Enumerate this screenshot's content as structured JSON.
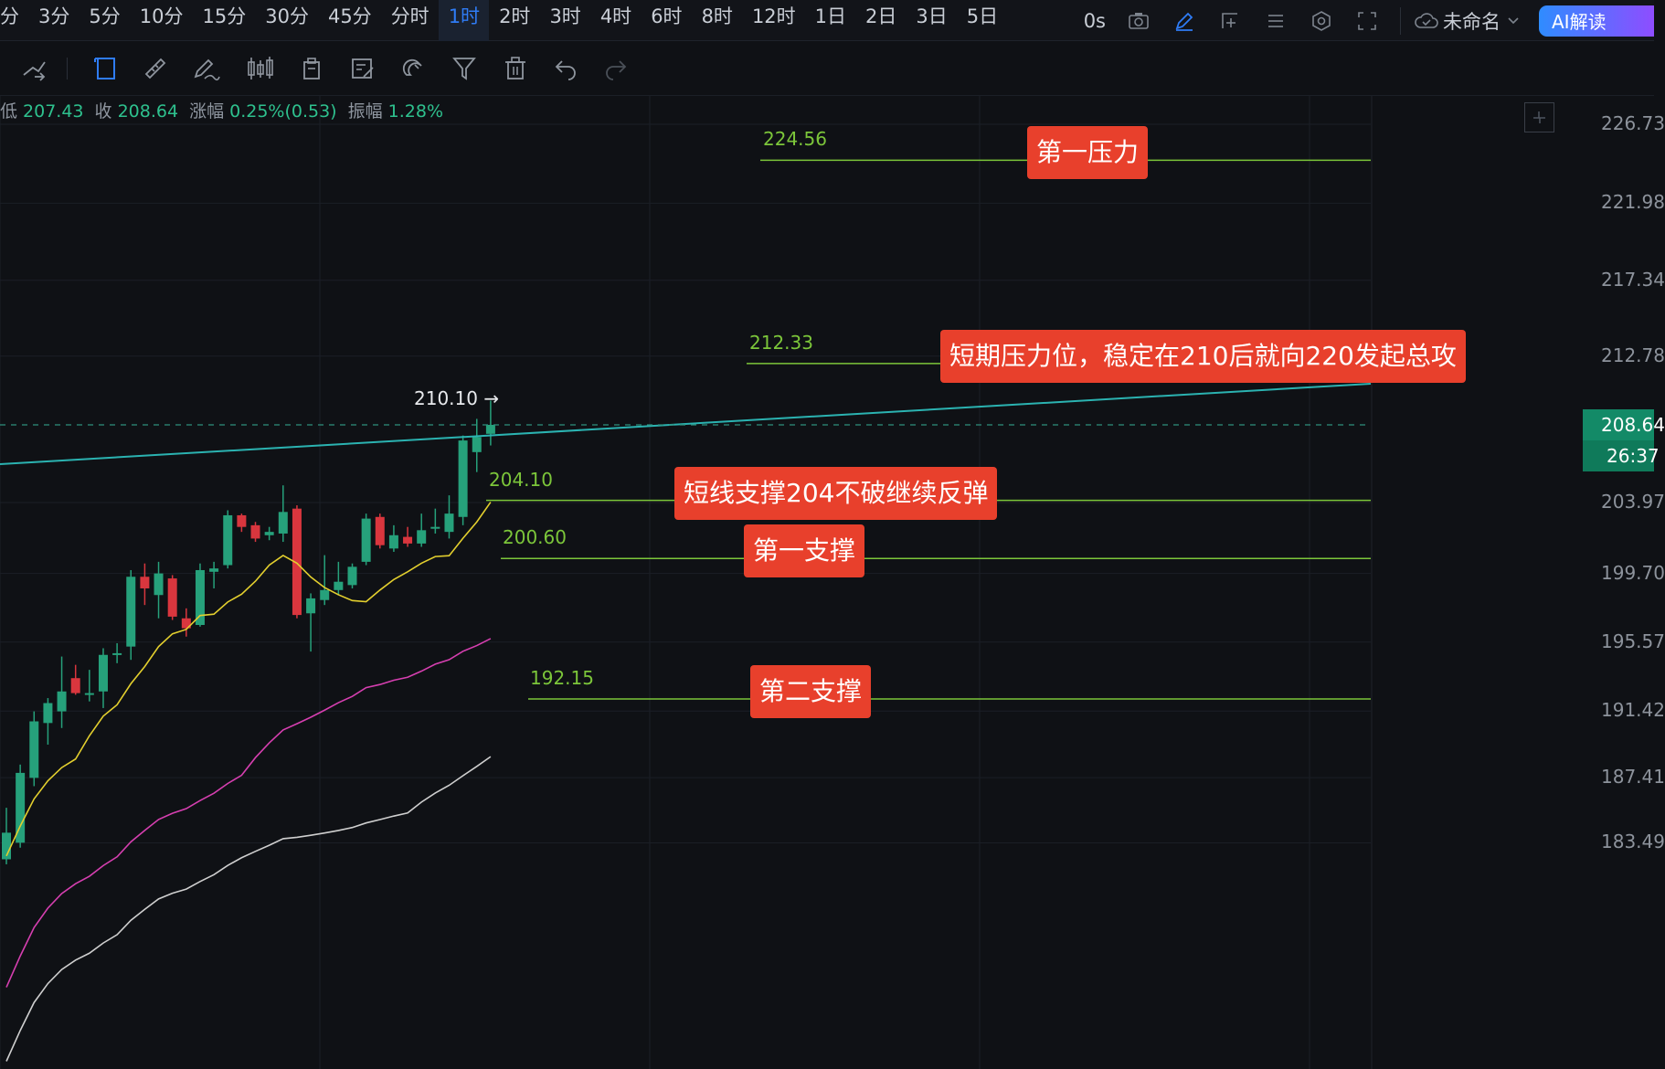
{
  "timeframes": [
    "分",
    "3分",
    "5分",
    "10分",
    "15分",
    "30分",
    "45分",
    "分时",
    "1时",
    "2时",
    "3时",
    "4时",
    "6时",
    "8时",
    "12时",
    "1日",
    "2日",
    "3日",
    "5日"
  ],
  "active_timeframe": "1时",
  "top_right": {
    "countdown": "0s",
    "layout_name": "未命名",
    "ai_button": "AI解读"
  },
  "ohlc": {
    "low_label": "低",
    "low": "207.43",
    "close_label": "收",
    "close": "208.64",
    "change_label": "涨幅",
    "change": "0.25%(0.53)",
    "amplitude_label": "振幅",
    "amplitude": "1.28%"
  },
  "colors": {
    "up": "#26a17b",
    "down": "#d9363e",
    "level_line": "#7cc63a",
    "annotation": "#e8402c",
    "trendline": "#2bb3b1",
    "ma_fast": "#e3cf2e",
    "ma_mid": "#d63fb0",
    "ma_slow": "#cfcfcf"
  },
  "chart_data": {
    "type": "candlestick",
    "price_axis_ticks": [
      "226.73",
      "221.98",
      "217.34",
      "212.78",
      "208.64",
      "203.97",
      "199.70",
      "195.57",
      "191.42",
      "187.41",
      "183.49"
    ],
    "current_price": "208.64",
    "countdown": "26:37",
    "peak_label": "210.10 →",
    "levels": [
      {
        "price": 224.56,
        "label": "224.56",
        "annotation": "第一压力"
      },
      {
        "price": 212.33,
        "label": "212.33",
        "annotation": "短期压力位，稳定在210后就向220发起总攻"
      },
      {
        "price": 204.1,
        "label": "204.10",
        "annotation": "短线支撑204不破继续反弹"
      },
      {
        "price": 200.6,
        "label": "200.60",
        "annotation": "第一支撑"
      },
      {
        "price": 192.15,
        "label": "192.15",
        "annotation": "第二支撑"
      }
    ],
    "candles": [
      {
        "o": 182.5,
        "h": 185.6,
        "l": 182.2,
        "c": 184.1
      },
      {
        "o": 183.5,
        "h": 188.2,
        "l": 183.2,
        "c": 187.7
      },
      {
        "o": 187.4,
        "h": 191.4,
        "l": 186.9,
        "c": 190.8
      },
      {
        "o": 190.7,
        "h": 192.2,
        "l": 189.4,
        "c": 191.9
      },
      {
        "o": 191.4,
        "h": 194.7,
        "l": 190.4,
        "c": 192.6
      },
      {
        "o": 193.4,
        "h": 194.2,
        "l": 192.4,
        "c": 192.5
      },
      {
        "o": 192.4,
        "h": 193.9,
        "l": 192.0,
        "c": 192.5
      },
      {
        "o": 192.6,
        "h": 195.2,
        "l": 191.6,
        "c": 194.8
      },
      {
        "o": 194.8,
        "h": 195.5,
        "l": 194.3,
        "c": 194.9
      },
      {
        "o": 195.3,
        "h": 199.9,
        "l": 194.5,
        "c": 199.5
      },
      {
        "o": 199.5,
        "h": 200.3,
        "l": 197.8,
        "c": 198.8
      },
      {
        "o": 198.4,
        "h": 200.4,
        "l": 197.0,
        "c": 199.7
      },
      {
        "o": 199.4,
        "h": 199.6,
        "l": 196.9,
        "c": 197.1
      },
      {
        "o": 197.0,
        "h": 197.6,
        "l": 195.9,
        "c": 196.4
      },
      {
        "o": 196.6,
        "h": 200.3,
        "l": 196.5,
        "c": 199.9
      },
      {
        "o": 199.8,
        "h": 200.4,
        "l": 198.8,
        "c": 200.0
      },
      {
        "o": 200.2,
        "h": 203.5,
        "l": 200.0,
        "c": 203.2
      },
      {
        "o": 203.2,
        "h": 203.3,
        "l": 202.2,
        "c": 202.5
      },
      {
        "o": 202.6,
        "h": 202.8,
        "l": 201.6,
        "c": 201.8
      },
      {
        "o": 202.0,
        "h": 202.5,
        "l": 201.7,
        "c": 202.2
      },
      {
        "o": 202.1,
        "h": 205.0,
        "l": 201.6,
        "c": 203.4
      },
      {
        "o": 203.6,
        "h": 203.8,
        "l": 197.0,
        "c": 197.2
      },
      {
        "o": 197.3,
        "h": 198.5,
        "l": 195.0,
        "c": 198.2
      },
      {
        "o": 198.1,
        "h": 200.8,
        "l": 197.8,
        "c": 198.7
      },
      {
        "o": 198.7,
        "h": 200.4,
        "l": 198.4,
        "c": 199.2
      },
      {
        "o": 199.0,
        "h": 200.3,
        "l": 198.8,
        "c": 200.1
      },
      {
        "o": 200.4,
        "h": 203.3,
        "l": 200.2,
        "c": 203.0
      },
      {
        "o": 203.1,
        "h": 203.3,
        "l": 201.2,
        "c": 201.4
      },
      {
        "o": 201.2,
        "h": 202.6,
        "l": 201.0,
        "c": 202.0
      },
      {
        "o": 201.9,
        "h": 202.5,
        "l": 201.3,
        "c": 201.5
      },
      {
        "o": 201.5,
        "h": 203.3,
        "l": 201.3,
        "c": 202.3
      },
      {
        "o": 202.4,
        "h": 203.6,
        "l": 202.1,
        "c": 202.5
      },
      {
        "o": 202.2,
        "h": 204.4,
        "l": 201.8,
        "c": 203.3
      },
      {
        "o": 203.1,
        "h": 208.0,
        "l": 202.6,
        "c": 207.7
      },
      {
        "o": 207.0,
        "h": 209.0,
        "l": 205.8,
        "c": 207.9
      },
      {
        "o": 208.1,
        "h": 210.1,
        "l": 207.4,
        "c": 208.64
      }
    ]
  }
}
